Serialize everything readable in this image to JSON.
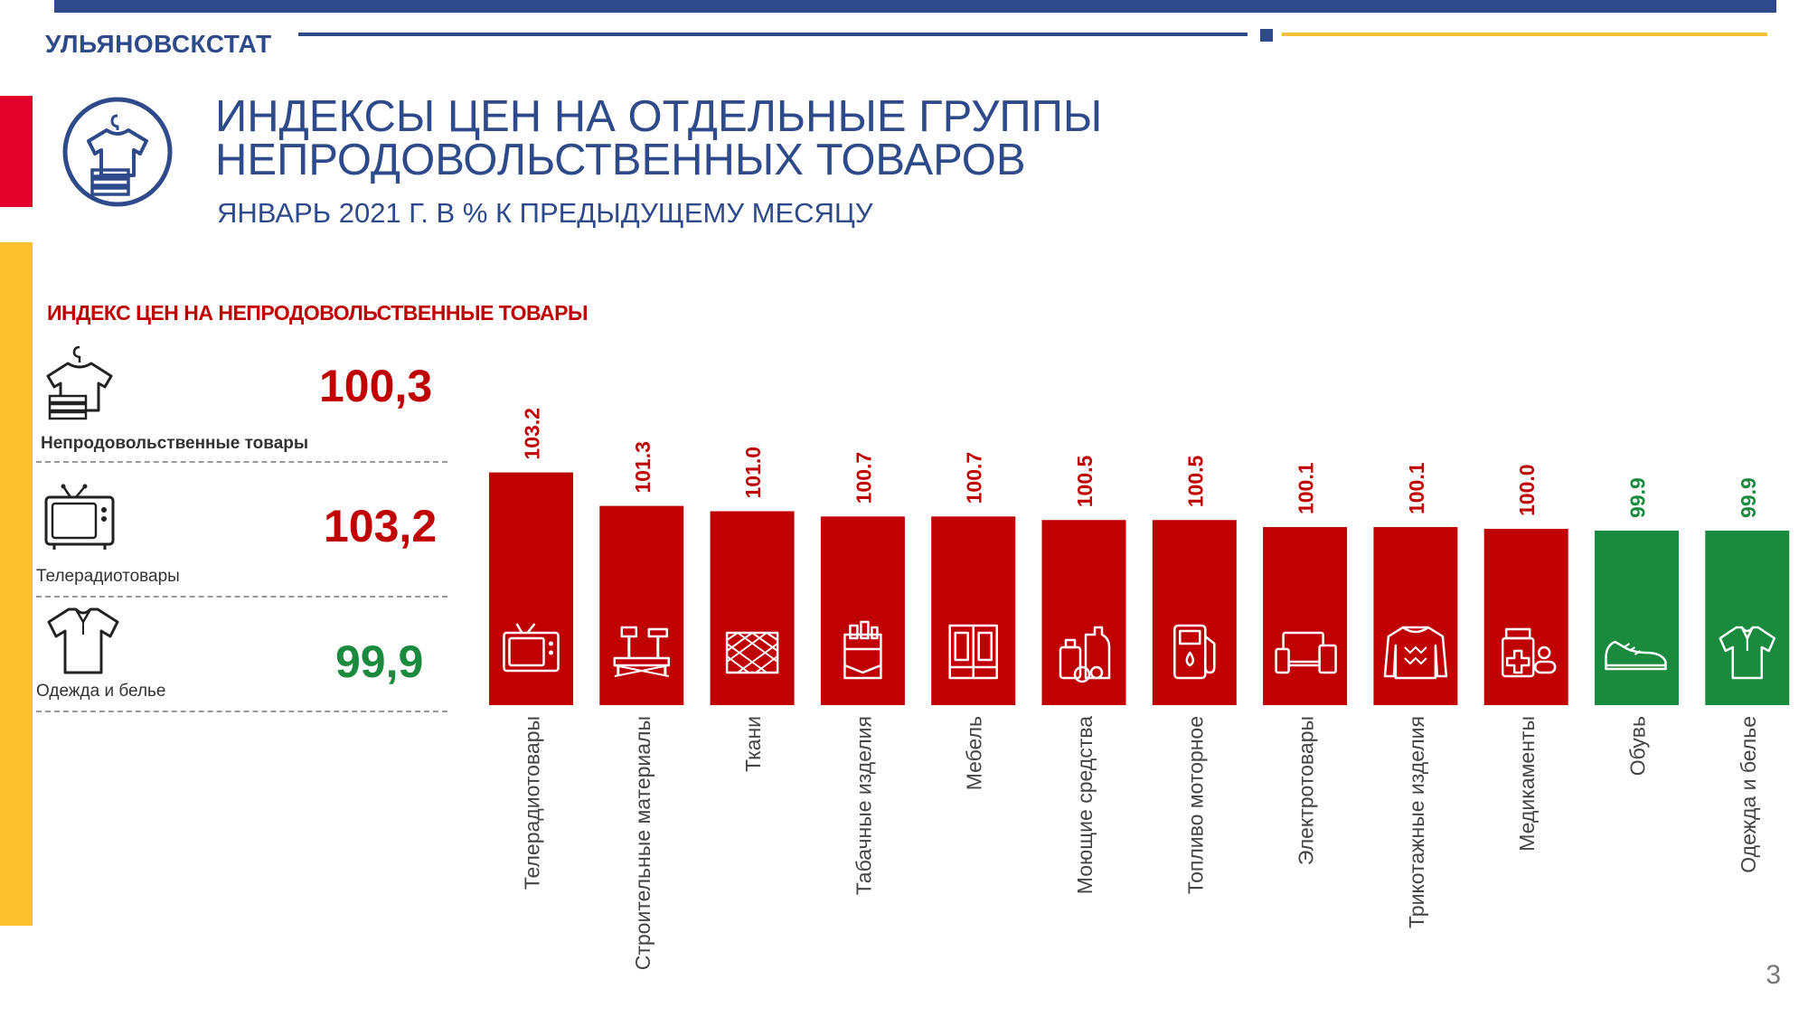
{
  "header": {
    "org_name": "УЛЬЯНОВСКСТАТ",
    "title_line1": "ИНДЕКСЫ ЦЕН НА ОТДЕЛЬНЫЕ ГРУППЫ",
    "title_line2": "НЕПРОДОВОЛЬСТВЕННЫХ ТОВАРОВ",
    "subtitle": "ЯНВАРЬ 2021 Г. В % К ПРЕДЫДУЩЕМУ МЕСЯЦУ"
  },
  "summary": {
    "heading": "ИНДЕКС ЦЕН НА НЕПРОДОВОЛЬСТВЕННЫЕ ТОВАРЫ",
    "items": [
      {
        "label": "Непродовольственные товары",
        "value": "100,3",
        "icon": "clothes-hanger-icon"
      },
      {
        "label": "Телерадиотовары",
        "value": "103,2",
        "icon": "tv-icon"
      },
      {
        "label": "Одежда и белье",
        "value": "99,9",
        "icon": "shirt-icon"
      }
    ]
  },
  "colors": {
    "brand_blue": "#2E4A8A",
    "increase_red": "#C00000",
    "decrease_green": "#1A8A3E",
    "accent_yellow": "#FBC02D",
    "accent_red": "#E3002B"
  },
  "chart_data": {
    "type": "bar",
    "title": "",
    "xlabel": "",
    "ylabel": "",
    "categories": [
      "Телерадиотовары",
      "Строительные материалы",
      "Ткани",
      "Табачные изделия",
      "Мебель",
      "Моющие средства",
      "Топливо моторное",
      "Электротовары",
      "Трикотажные изделия",
      "Медикаменты",
      "Обувь",
      "Одежда и белье"
    ],
    "values": [
      103.2,
      101.3,
      101.0,
      100.7,
      100.7,
      100.5,
      100.5,
      100.1,
      100.1,
      100.0,
      99.9,
      99.9
    ],
    "value_labels": [
      "103.2",
      "101.3",
      "101.0",
      "100.7",
      "100.7",
      "100.5",
      "100.5",
      "100.1",
      "100.1",
      "100.0",
      "99.9",
      "99.9"
    ],
    "icons": [
      "tv-icon",
      "tools-icon",
      "fabric-icon",
      "cigarettes-icon",
      "wardrobe-icon",
      "detergent-icon",
      "fuel-pump-icon",
      "devices-icon",
      "sweater-icon",
      "medicine-icon",
      "sneaker-icon",
      "shirt-icon"
    ],
    "baseline": 100,
    "ylim": [
      90,
      104
    ]
  },
  "page_number": "3"
}
